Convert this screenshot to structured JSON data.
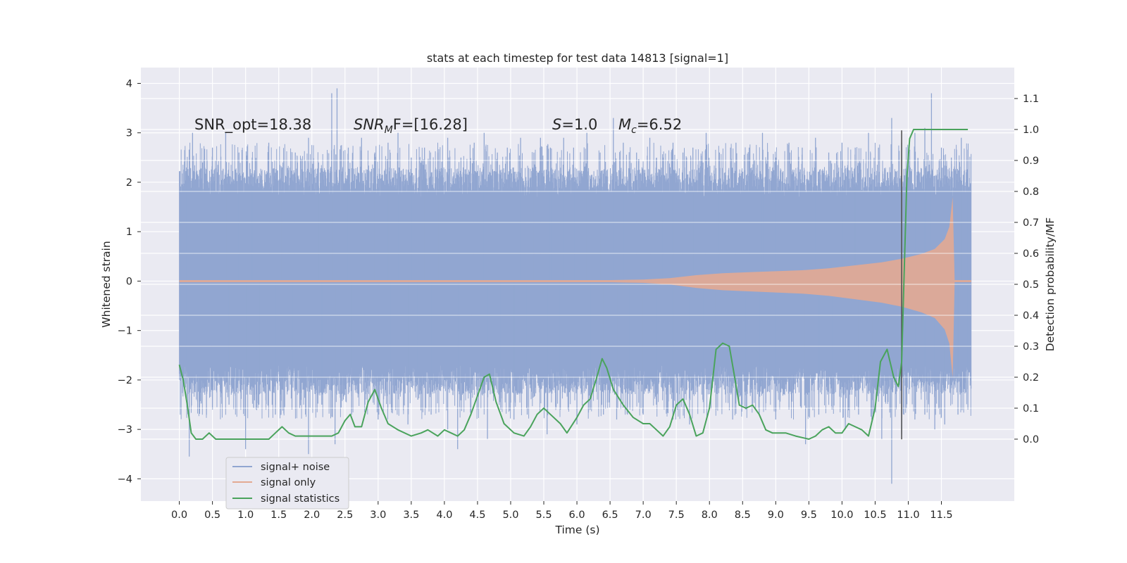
{
  "chart_data": {
    "type": "line",
    "title": "stats at each timestep for test data 14813 [signal=1]",
    "xlabel": "Time (s)",
    "ylabel": "Whitened strain",
    "y2label": "Detection probability/MF",
    "xlim": [
      -0.58,
      12.6
    ],
    "ylim": [
      -4.45,
      4.32
    ],
    "y2lim": [
      -0.2,
      1.2
    ],
    "x_ticks": [
      "0.0",
      "0.5",
      "1.0",
      "1.5",
      "2.0",
      "2.5",
      "3.0",
      "3.5",
      "4.0",
      "4.5",
      "5.0",
      "5.5",
      "6.0",
      "6.5",
      "7.0",
      "7.5",
      "8.0",
      "8.5",
      "9.0",
      "9.5",
      "10.0",
      "10.5",
      "11.0",
      "11.5"
    ],
    "y_ticks": [
      "−4",
      "−3",
      "−2",
      "−1",
      "0",
      "1",
      "2",
      "3",
      "4"
    ],
    "y2_ticks": [
      "0.0",
      "0.1",
      "0.2",
      "0.3",
      "0.4",
      "0.5",
      "0.6",
      "0.7",
      "0.8",
      "0.9",
      "1.0",
      "1.1"
    ],
    "grid": true,
    "legend_position": "lower-left",
    "annotations": {
      "snr_opt": "SNR_opt=18.38",
      "snr_mf_main": "SNR",
      "snr_mf_sub": "M",
      "snr_mf_rest": "F=[16.28]",
      "s_main": "S",
      "s_rest": "=1.0",
      "mc_main": "M",
      "mc_sub": "c",
      "mc_rest": "=6.52"
    },
    "detection_time": 10.9,
    "series": [
      {
        "name": "signal+ noise",
        "color": "#91a6d1",
        "axis": "left",
        "x_range": [
          0.0,
          11.95
        ],
        "core_band": [
          -1.7,
          1.7
        ],
        "peak_max": [
          [
            0.1,
            2.2
          ],
          [
            0.2,
            3.0
          ],
          [
            0.35,
            2.4
          ],
          [
            0.5,
            2.7
          ],
          [
            0.7,
            3.0
          ],
          [
            0.9,
            2.6
          ],
          [
            1.1,
            2.5
          ],
          [
            1.35,
            2.8
          ],
          [
            1.55,
            2.3
          ],
          [
            1.75,
            2.6
          ],
          [
            1.95,
            2.9
          ],
          [
            2.1,
            2.4
          ],
          [
            2.3,
            3.8
          ],
          [
            2.38,
            3.9
          ],
          [
            2.55,
            2.7
          ],
          [
            2.75,
            2.9
          ],
          [
            2.95,
            2.6
          ],
          [
            3.15,
            2.8
          ],
          [
            3.3,
            3.0
          ],
          [
            3.5,
            2.5
          ],
          [
            3.7,
            2.7
          ],
          [
            3.9,
            2.6
          ],
          [
            4.05,
            2.9
          ],
          [
            4.25,
            2.5
          ],
          [
            4.45,
            2.8
          ],
          [
            4.6,
            3.0
          ],
          [
            4.8,
            2.6
          ],
          [
            4.95,
            2.7
          ],
          [
            5.15,
            2.9
          ],
          [
            5.35,
            2.6
          ],
          [
            5.45,
            2.9
          ],
          [
            5.6,
            2.7
          ],
          [
            5.8,
            2.9
          ],
          [
            5.95,
            2.7
          ],
          [
            6.15,
            3.0
          ],
          [
            6.35,
            2.6
          ],
          [
            6.55,
            3.3
          ],
          [
            6.7,
            2.8
          ],
          [
            6.9,
            2.6
          ],
          [
            7.1,
            2.9
          ],
          [
            7.3,
            2.5
          ],
          [
            7.45,
            2.8
          ],
          [
            7.6,
            2.6
          ],
          [
            7.75,
            2.7
          ],
          [
            7.95,
            3.0
          ],
          [
            8.15,
            2.6
          ],
          [
            8.4,
            2.8
          ],
          [
            8.6,
            2.7
          ],
          [
            8.8,
            3.0
          ],
          [
            9.0,
            2.5
          ],
          [
            9.2,
            2.8
          ],
          [
            9.4,
            2.7
          ],
          [
            9.6,
            2.9
          ],
          [
            9.8,
            2.6
          ],
          [
            10.0,
            2.8
          ],
          [
            10.2,
            2.7
          ],
          [
            10.4,
            3.0
          ],
          [
            10.55,
            2.7
          ],
          [
            10.75,
            3.3
          ],
          [
            10.9,
            2.8
          ],
          [
            11.1,
            3.0
          ],
          [
            11.25,
            3.1
          ],
          [
            11.35,
            3.8
          ],
          [
            11.5,
            2.7
          ],
          [
            11.65,
            2.5
          ],
          [
            11.8,
            2.9
          ],
          [
            11.9,
            2.2
          ]
        ],
        "peak_min": [
          [
            0.1,
            -1.6
          ],
          [
            0.15,
            -3.55
          ],
          [
            0.3,
            -2.4
          ],
          [
            0.5,
            -2.6
          ],
          [
            0.75,
            -2.5
          ],
          [
            1.0,
            -3.4
          ],
          [
            1.2,
            -2.5
          ],
          [
            1.45,
            -2.7
          ],
          [
            1.7,
            -2.6
          ],
          [
            1.95,
            -3.5
          ],
          [
            2.15,
            -2.5
          ],
          [
            2.35,
            -3.3
          ],
          [
            2.6,
            -2.7
          ],
          [
            2.8,
            -2.5
          ],
          [
            3.0,
            -2.8
          ],
          [
            3.2,
            -2.6
          ],
          [
            3.45,
            -2.9
          ],
          [
            3.6,
            -2.4
          ],
          [
            3.8,
            -2.7
          ],
          [
            4.05,
            -3.0
          ],
          [
            4.2,
            -3.4
          ],
          [
            4.4,
            -2.7
          ],
          [
            4.65,
            -3.2
          ],
          [
            4.85,
            -2.6
          ],
          [
            5.05,
            -2.8
          ],
          [
            5.25,
            -2.7
          ],
          [
            5.55,
            -3.1
          ],
          [
            5.75,
            -2.6
          ],
          [
            6.0,
            -2.9
          ],
          [
            6.2,
            -2.6
          ],
          [
            6.4,
            -2.7
          ],
          [
            6.6,
            -2.8
          ],
          [
            6.8,
            -2.6
          ],
          [
            7.0,
            -2.7
          ],
          [
            7.2,
            -2.5
          ],
          [
            7.45,
            -2.8
          ],
          [
            7.7,
            -2.9
          ],
          [
            7.9,
            -2.4
          ],
          [
            8.1,
            -2.6
          ],
          [
            8.35,
            -2.8
          ],
          [
            8.55,
            -2.6
          ],
          [
            8.75,
            -2.7
          ],
          [
            9.0,
            -2.8
          ],
          [
            9.2,
            -2.6
          ],
          [
            9.45,
            -3.3
          ],
          [
            9.65,
            -2.7
          ],
          [
            9.85,
            -2.6
          ],
          [
            10.05,
            -3.0
          ],
          [
            10.25,
            -2.7
          ],
          [
            10.45,
            -2.8
          ],
          [
            10.6,
            -3.2
          ],
          [
            10.75,
            -4.1
          ],
          [
            10.9,
            -3.1
          ],
          [
            11.1,
            -2.8
          ],
          [
            11.25,
            -2.7
          ],
          [
            11.4,
            -3.0
          ],
          [
            11.55,
            -2.9
          ],
          [
            11.75,
            -2.7
          ],
          [
            11.9,
            -2.6
          ]
        ]
      },
      {
        "name": "signal only",
        "color": "#e3aa92",
        "axis": "left",
        "envelope": [
          [
            0.0,
            0.02
          ],
          [
            6.5,
            0.02
          ],
          [
            7.0,
            0.03
          ],
          [
            7.4,
            0.06
          ],
          [
            7.8,
            0.12
          ],
          [
            8.2,
            0.16
          ],
          [
            8.6,
            0.18
          ],
          [
            9.0,
            0.2
          ],
          [
            9.4,
            0.22
          ],
          [
            9.8,
            0.26
          ],
          [
            10.2,
            0.32
          ],
          [
            10.6,
            0.38
          ],
          [
            10.9,
            0.45
          ],
          [
            11.2,
            0.55
          ],
          [
            11.4,
            0.65
          ],
          [
            11.55,
            0.85
          ],
          [
            11.62,
            1.1
          ],
          [
            11.67,
            1.7
          ],
          [
            11.7,
            0.02
          ],
          [
            11.95,
            0.02
          ]
        ]
      },
      {
        "name": "signal statistics",
        "color": "#4aa35c",
        "axis": "right",
        "points": [
          [
            0.0,
            0.24
          ],
          [
            0.06,
            0.19
          ],
          [
            0.12,
            0.11
          ],
          [
            0.18,
            0.02
          ],
          [
            0.25,
            0.0
          ],
          [
            0.35,
            0.0
          ],
          [
            0.45,
            0.02
          ],
          [
            0.55,
            0.0
          ],
          [
            0.7,
            0.0
          ],
          [
            0.85,
            0.0
          ],
          [
            1.0,
            0.0
          ],
          [
            1.2,
            0.0
          ],
          [
            1.35,
            0.0
          ],
          [
            1.45,
            0.02
          ],
          [
            1.55,
            0.04
          ],
          [
            1.65,
            0.02
          ],
          [
            1.75,
            0.01
          ],
          [
            1.9,
            0.01
          ],
          [
            2.1,
            0.01
          ],
          [
            2.3,
            0.01
          ],
          [
            2.4,
            0.02
          ],
          [
            2.5,
            0.06
          ],
          [
            2.58,
            0.08
          ],
          [
            2.65,
            0.04
          ],
          [
            2.75,
            0.04
          ],
          [
            2.85,
            0.12
          ],
          [
            2.95,
            0.16
          ],
          [
            3.05,
            0.1
          ],
          [
            3.15,
            0.05
          ],
          [
            3.3,
            0.03
          ],
          [
            3.5,
            0.01
          ],
          [
            3.65,
            0.02
          ],
          [
            3.75,
            0.03
          ],
          [
            3.9,
            0.01
          ],
          [
            4.0,
            0.03
          ],
          [
            4.1,
            0.02
          ],
          [
            4.2,
            0.01
          ],
          [
            4.3,
            0.03
          ],
          [
            4.4,
            0.08
          ],
          [
            4.5,
            0.14
          ],
          [
            4.6,
            0.2
          ],
          [
            4.68,
            0.21
          ],
          [
            4.78,
            0.12
          ],
          [
            4.9,
            0.05
          ],
          [
            5.05,
            0.02
          ],
          [
            5.2,
            0.01
          ],
          [
            5.3,
            0.04
          ],
          [
            5.4,
            0.08
          ],
          [
            5.5,
            0.1
          ],
          [
            5.6,
            0.08
          ],
          [
            5.75,
            0.05
          ],
          [
            5.85,
            0.02
          ],
          [
            6.0,
            0.07
          ],
          [
            6.1,
            0.11
          ],
          [
            6.2,
            0.13
          ],
          [
            6.3,
            0.2
          ],
          [
            6.38,
            0.26
          ],
          [
            6.45,
            0.23
          ],
          [
            6.55,
            0.16
          ],
          [
            6.7,
            0.11
          ],
          [
            6.85,
            0.07
          ],
          [
            7.0,
            0.05
          ],
          [
            7.1,
            0.05
          ],
          [
            7.2,
            0.03
          ],
          [
            7.3,
            0.01
          ],
          [
            7.4,
            0.04
          ],
          [
            7.5,
            0.11
          ],
          [
            7.6,
            0.13
          ],
          [
            7.7,
            0.08
          ],
          [
            7.8,
            0.01
          ],
          [
            7.9,
            0.02
          ],
          [
            8.0,
            0.1
          ],
          [
            8.1,
            0.29
          ],
          [
            8.2,
            0.31
          ],
          [
            8.3,
            0.3
          ],
          [
            8.38,
            0.2
          ],
          [
            8.45,
            0.11
          ],
          [
            8.55,
            0.1
          ],
          [
            8.65,
            0.11
          ],
          [
            8.75,
            0.08
          ],
          [
            8.85,
            0.03
          ],
          [
            8.95,
            0.02
          ],
          [
            9.05,
            0.02
          ],
          [
            9.15,
            0.02
          ],
          [
            9.3,
            0.01
          ],
          [
            9.5,
            0.0
          ],
          [
            9.6,
            0.01
          ],
          [
            9.7,
            0.03
          ],
          [
            9.8,
            0.04
          ],
          [
            9.9,
            0.02
          ],
          [
            10.0,
            0.02
          ],
          [
            10.1,
            0.05
          ],
          [
            10.2,
            0.04
          ],
          [
            10.3,
            0.03
          ],
          [
            10.4,
            0.01
          ],
          [
            10.5,
            0.1
          ],
          [
            10.58,
            0.25
          ],
          [
            10.68,
            0.29
          ],
          [
            10.78,
            0.2
          ],
          [
            10.85,
            0.17
          ],
          [
            10.9,
            0.25
          ],
          [
            10.94,
            0.55
          ],
          [
            10.98,
            0.85
          ],
          [
            11.02,
            0.97
          ],
          [
            11.08,
            1.0
          ],
          [
            11.2,
            1.0
          ],
          [
            11.5,
            1.0
          ],
          [
            11.9,
            1.0
          ]
        ]
      }
    ]
  }
}
